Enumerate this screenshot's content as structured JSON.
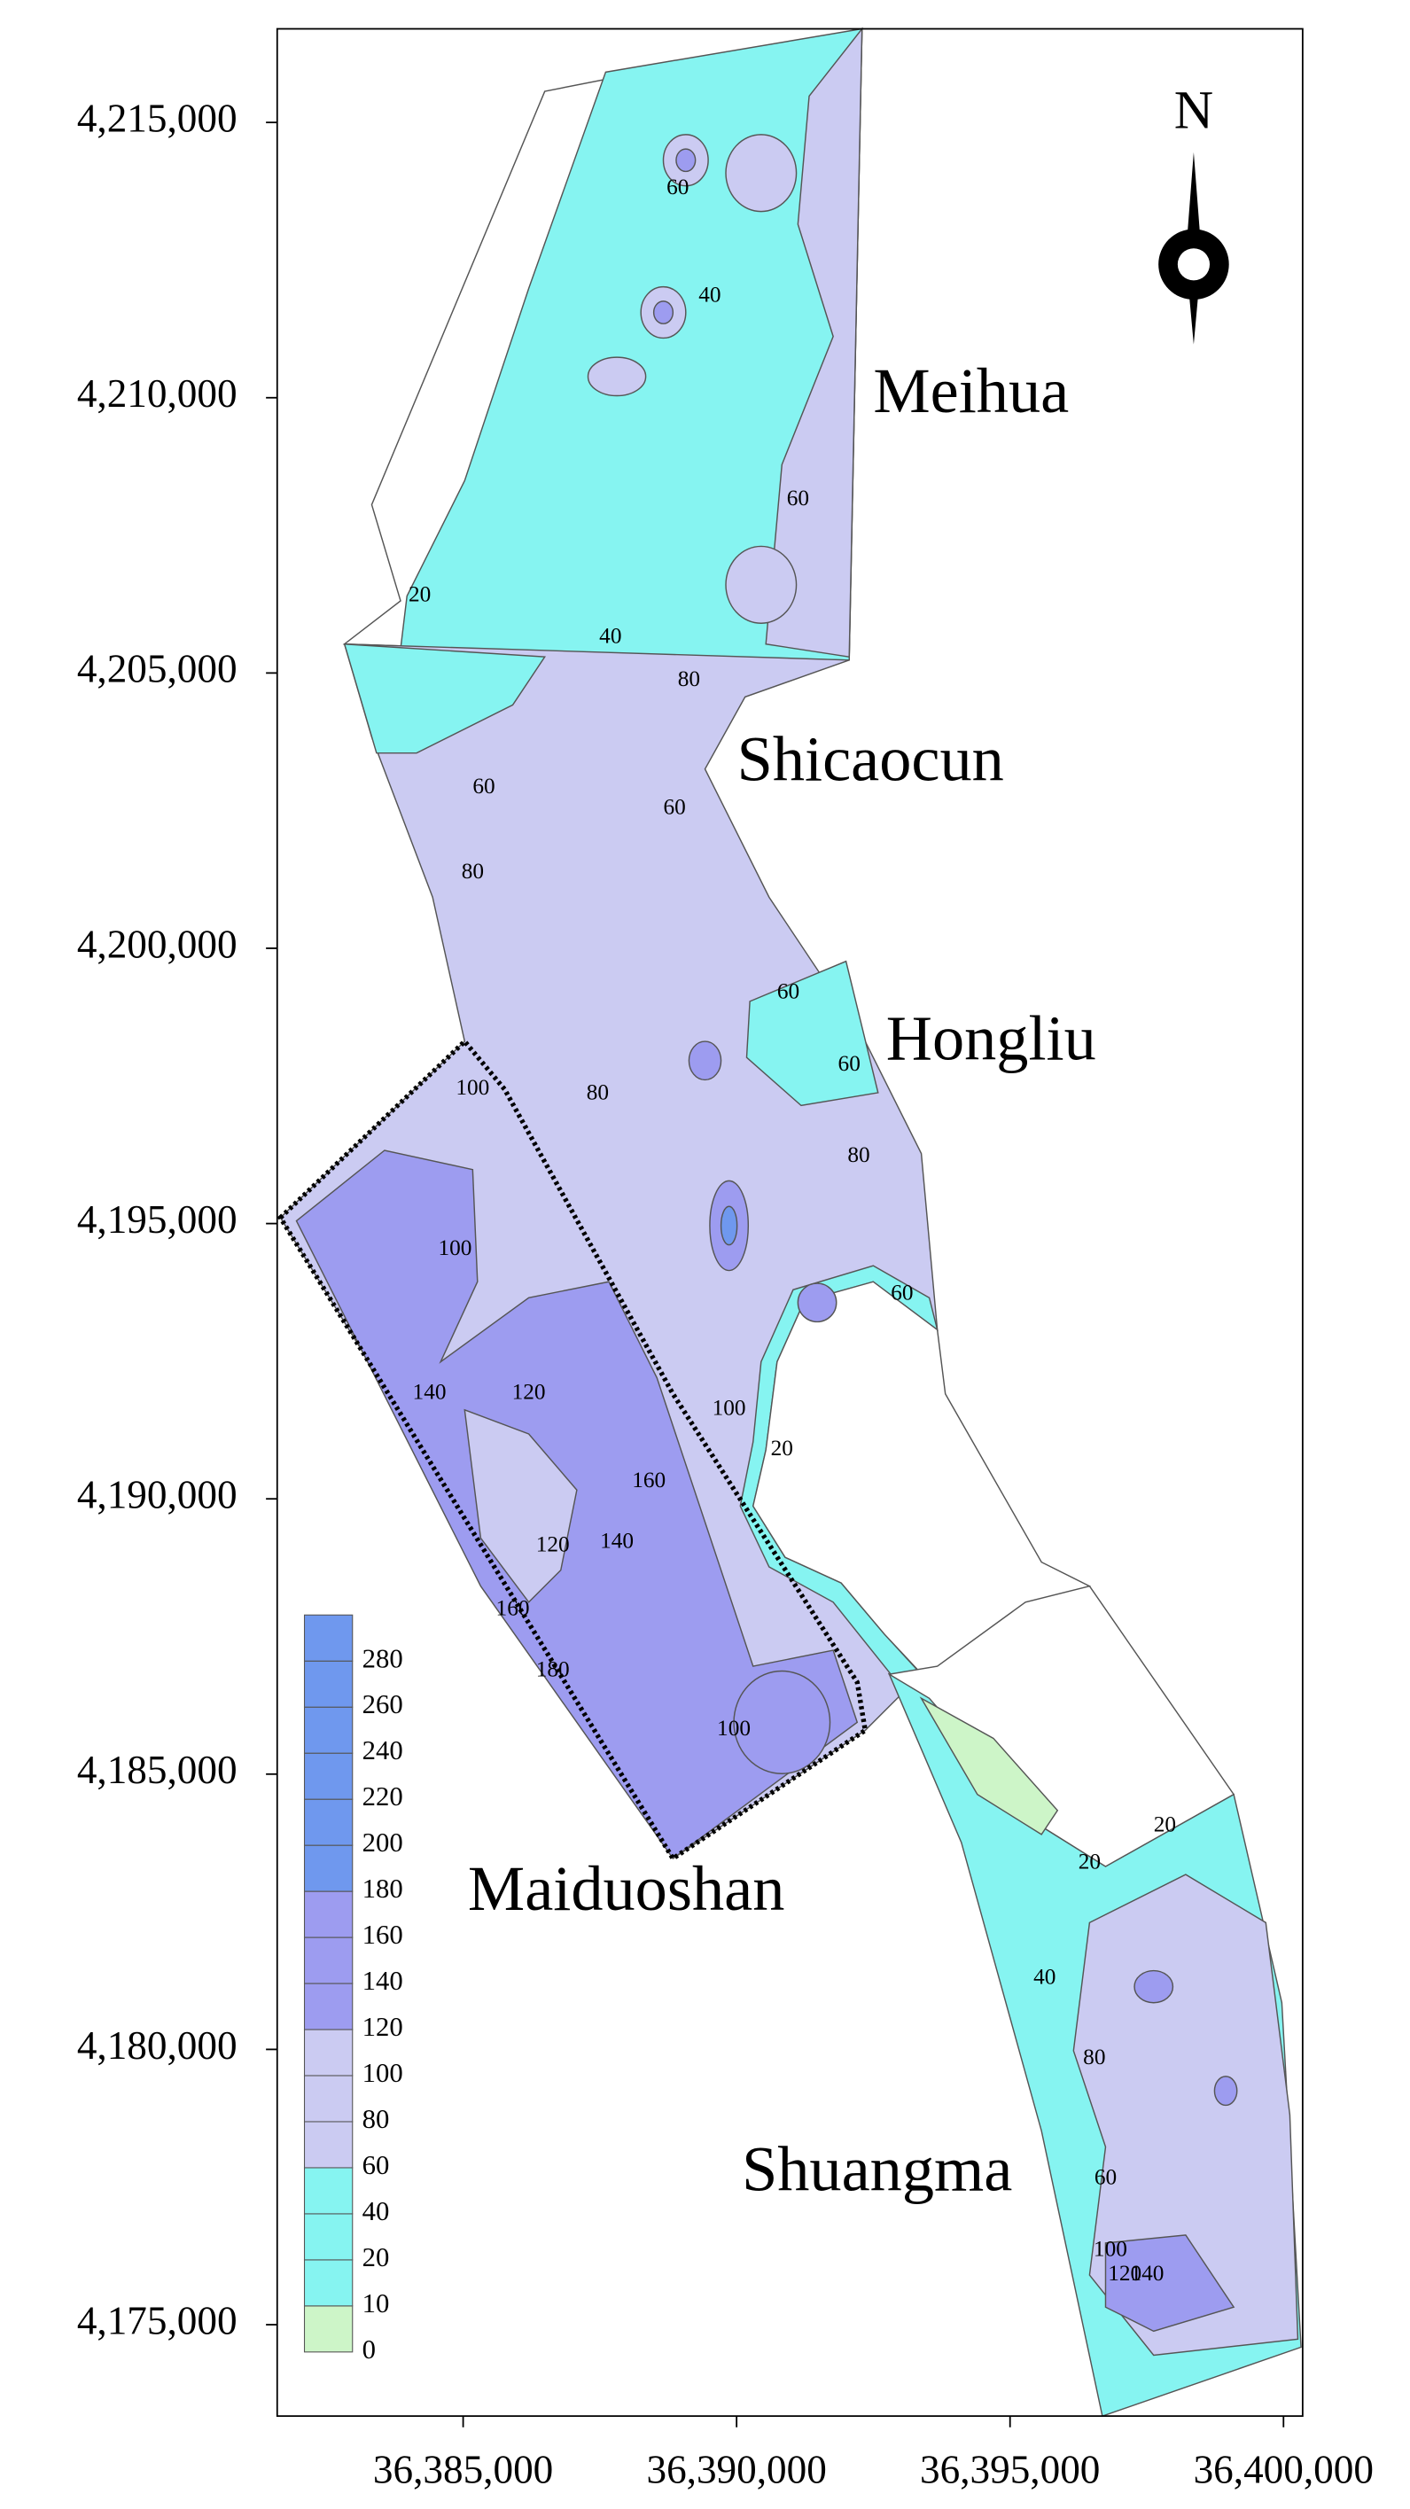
{
  "chart_data": {
    "type": "contour",
    "xlim": [
      36381600,
      36400350
    ],
    "ylim": [
      4173340,
      4216700
    ],
    "xticks": [
      {
        "value": 36385000,
        "label": "36,385,000"
      },
      {
        "value": 36390000,
        "label": "36,390,000"
      },
      {
        "value": 36395000,
        "label": "36,395,000"
      },
      {
        "value": 36400000,
        "label": "36,400,000"
      }
    ],
    "yticks": [
      {
        "value": 4175000,
        "label": "4,175,000"
      },
      {
        "value": 4180000,
        "label": "4,180,000"
      },
      {
        "value": 4185000,
        "label": "4,185,000"
      },
      {
        "value": 4190000,
        "label": "4,190,000"
      },
      {
        "value": 4195000,
        "label": "4,195,000"
      },
      {
        "value": 4200000,
        "label": "4,200,000"
      },
      {
        "value": 4205000,
        "label": "4,205,000"
      },
      {
        "value": 4210000,
        "label": "4,210,000"
      },
      {
        "value": 4215000,
        "label": "4,215,000"
      }
    ],
    "regions": [
      "Meihua",
      "Shicaocun",
      "Hongliu",
      "Maiduoshan",
      "Shuangma"
    ],
    "north_label": "N",
    "legend": {
      "levels": [
        0,
        10,
        20,
        40,
        60,
        80,
        100,
        120,
        140,
        160,
        180,
        200,
        220,
        240,
        260,
        280
      ],
      "colors": [
        "#cdf5c8",
        "#86f4f1",
        "#86f4f1",
        "#86f4f1",
        "#cbcbf2",
        "#cbcbf2",
        "#cbcbf2",
        "#9d9cf0",
        "#9d9cf0",
        "#9d9cf0",
        "#6f98ee",
        "#6f98ee",
        "#6f98ee",
        "#6f98ee",
        "#6f98ee",
        "#6f98ee"
      ]
    },
    "contour_labels": [
      60,
      40,
      60,
      40,
      20,
      80,
      60,
      60,
      80,
      60,
      80,
      100,
      60,
      80,
      100,
      60,
      120,
      140,
      100,
      20,
      160,
      120,
      140,
      160,
      180,
      100,
      20,
      20,
      40,
      80,
      60,
      100,
      120,
      140
    ]
  }
}
